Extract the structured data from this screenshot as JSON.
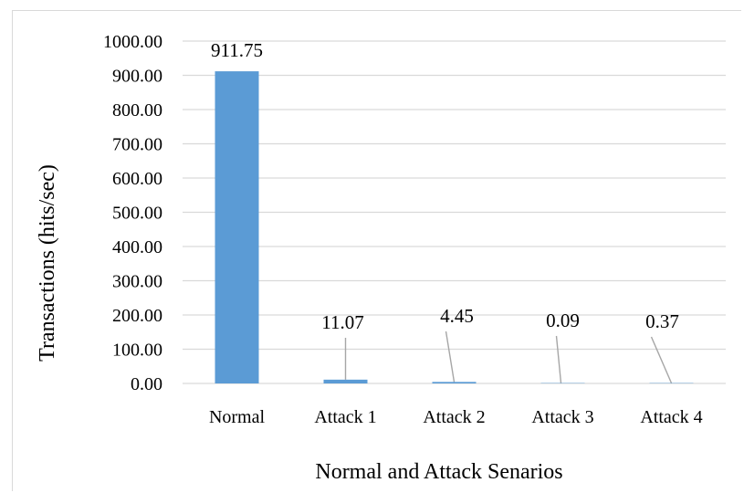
{
  "chart_data": {
    "type": "bar",
    "title": "",
    "xlabel": "Normal and Attack Senarios",
    "ylabel": "Transactions (hits/sec)",
    "categories": [
      "Normal",
      "Attack 1",
      "Attack 2",
      "Attack 3",
      "Attack  4"
    ],
    "values": [
      911.75,
      11.07,
      4.45,
      0.09,
      0.37
    ],
    "data_labels": [
      "911.75",
      "11.07",
      "4.45",
      "0.09",
      "0.37"
    ],
    "yticks": [
      "0.00",
      "100.00",
      "200.00",
      "300.00",
      "400.00",
      "500.00",
      "600.00",
      "700.00",
      "800.00",
      "900.00",
      "1000.00"
    ],
    "ylim": [
      0,
      1000
    ],
    "ystep": 100,
    "grid": true,
    "legend": "none",
    "bar_color": "#5b9bd5",
    "grid_color": "#d9d9d9",
    "leader_color": "#a6a6a6"
  }
}
